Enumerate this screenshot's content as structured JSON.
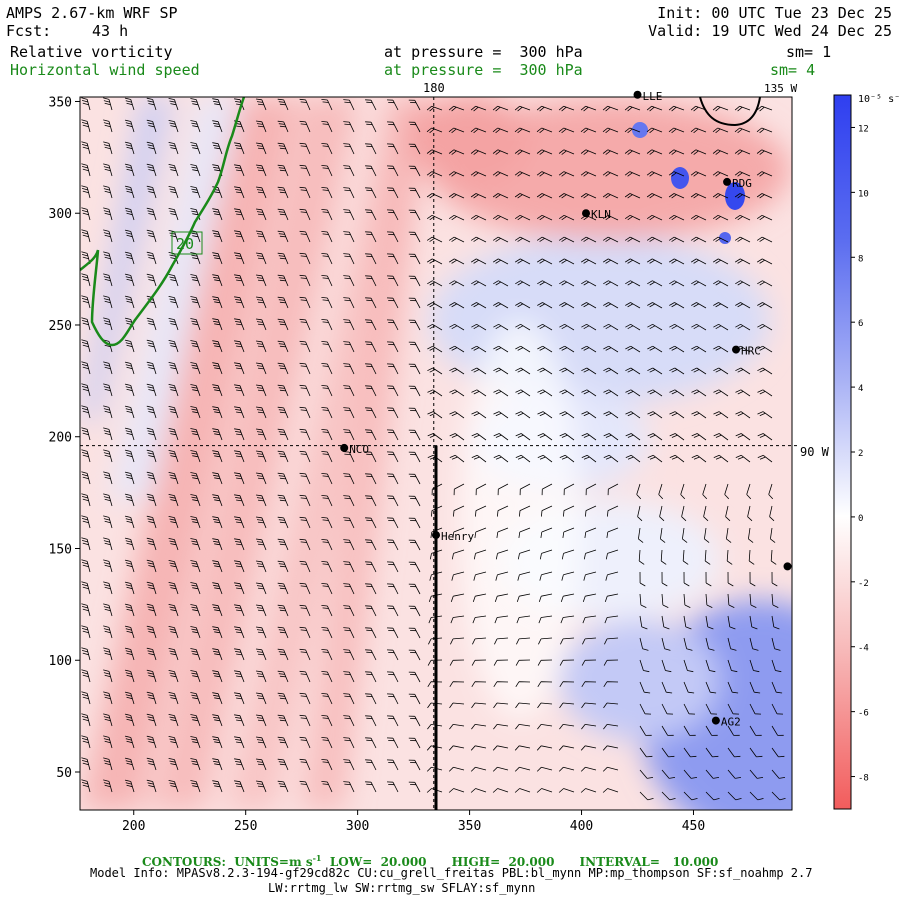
{
  "header": {
    "model": "AMPS 2.67-km WRF SP",
    "fcst_label": "Fcst:",
    "fcst_value": "43 h",
    "init": "Init: 00 UTC Tue 23 Dec 25",
    "valid": "Valid: 19 UTC Wed 24 Dec 25"
  },
  "fields": [
    {
      "name": "Relative vorticity",
      "level": "at pressure =  300 hPa",
      "smooth": "sm= 1",
      "color": "#000000"
    },
    {
      "name": "Horizontal wind speed",
      "level": "at pressure =  300 hPa",
      "smooth": "sm= 4",
      "color": "#1a8a1a"
    }
  ],
  "meridian_labels": {
    "top_180": "180",
    "top_135w": "135 W",
    "right_90w": "90 W"
  },
  "contour_label": "20",
  "colorbar": {
    "unit_label": "10⁻⁵ s⁻¹",
    "ticks": [
      "12",
      "10",
      "8",
      "6",
      "4",
      "2",
      "0",
      "-2",
      "-4",
      "-6",
      "-8"
    ],
    "low_color": "#f25c5c",
    "high_color": "#2f3ff0"
  },
  "chart_data": {
    "type": "heatmap",
    "title": "Relative vorticity and Horizontal wind speed at 300 hPa",
    "x_ticks": [
      "200",
      "250",
      "300",
      "350",
      "400",
      "450"
    ],
    "y_ticks": [
      "350",
      "300",
      "250",
      "200",
      "150",
      "100",
      "50"
    ],
    "xlim": [
      176,
      494
    ],
    "ylim": [
      33,
      352
    ],
    "colorbar_range": [
      -9,
      13
    ],
    "stations": [
      {
        "name": "LLE",
        "x": 425,
        "y": 353
      },
      {
        "name": "RDG",
        "x": 465,
        "y": 314
      },
      {
        "name": "KLN",
        "x": 402,
        "y": 300
      },
      {
        "name": "HRC",
        "x": 469,
        "y": 239
      },
      {
        "name": "NCO",
        "x": 294,
        "y": 195
      },
      {
        "name": "Henry",
        "x": 335,
        "y": 156
      },
      {
        "name": "",
        "x": 492,
        "y": 142
      },
      {
        "name": "AG2",
        "x": 460,
        "y": 73
      }
    ],
    "cross_section": {
      "x": 335,
      "y_from": 33,
      "y_to": 196
    },
    "meridian_180_x": 334,
    "meridian_90w_y": 196,
    "wind_contour": {
      "value": 20,
      "color": "#1a8a1a"
    }
  },
  "footer": {
    "contours_prefix": "CONTOURS:  UNITS=m s",
    "contours_suffix": "  LOW=  20.000      HIGH=  20.000      INTERVAL=   10.000",
    "model_info": "Model Info: MPASv8.2.3-194-gf29cd82c CU:cu_grell_freitas PBL:bl_mynn MP:mp_thompson SF:sf_noahmp 2.7",
    "model_info2": "LW:rrtmg_lw SW:rrtmg_sw SFLAY:sf_mynn"
  }
}
